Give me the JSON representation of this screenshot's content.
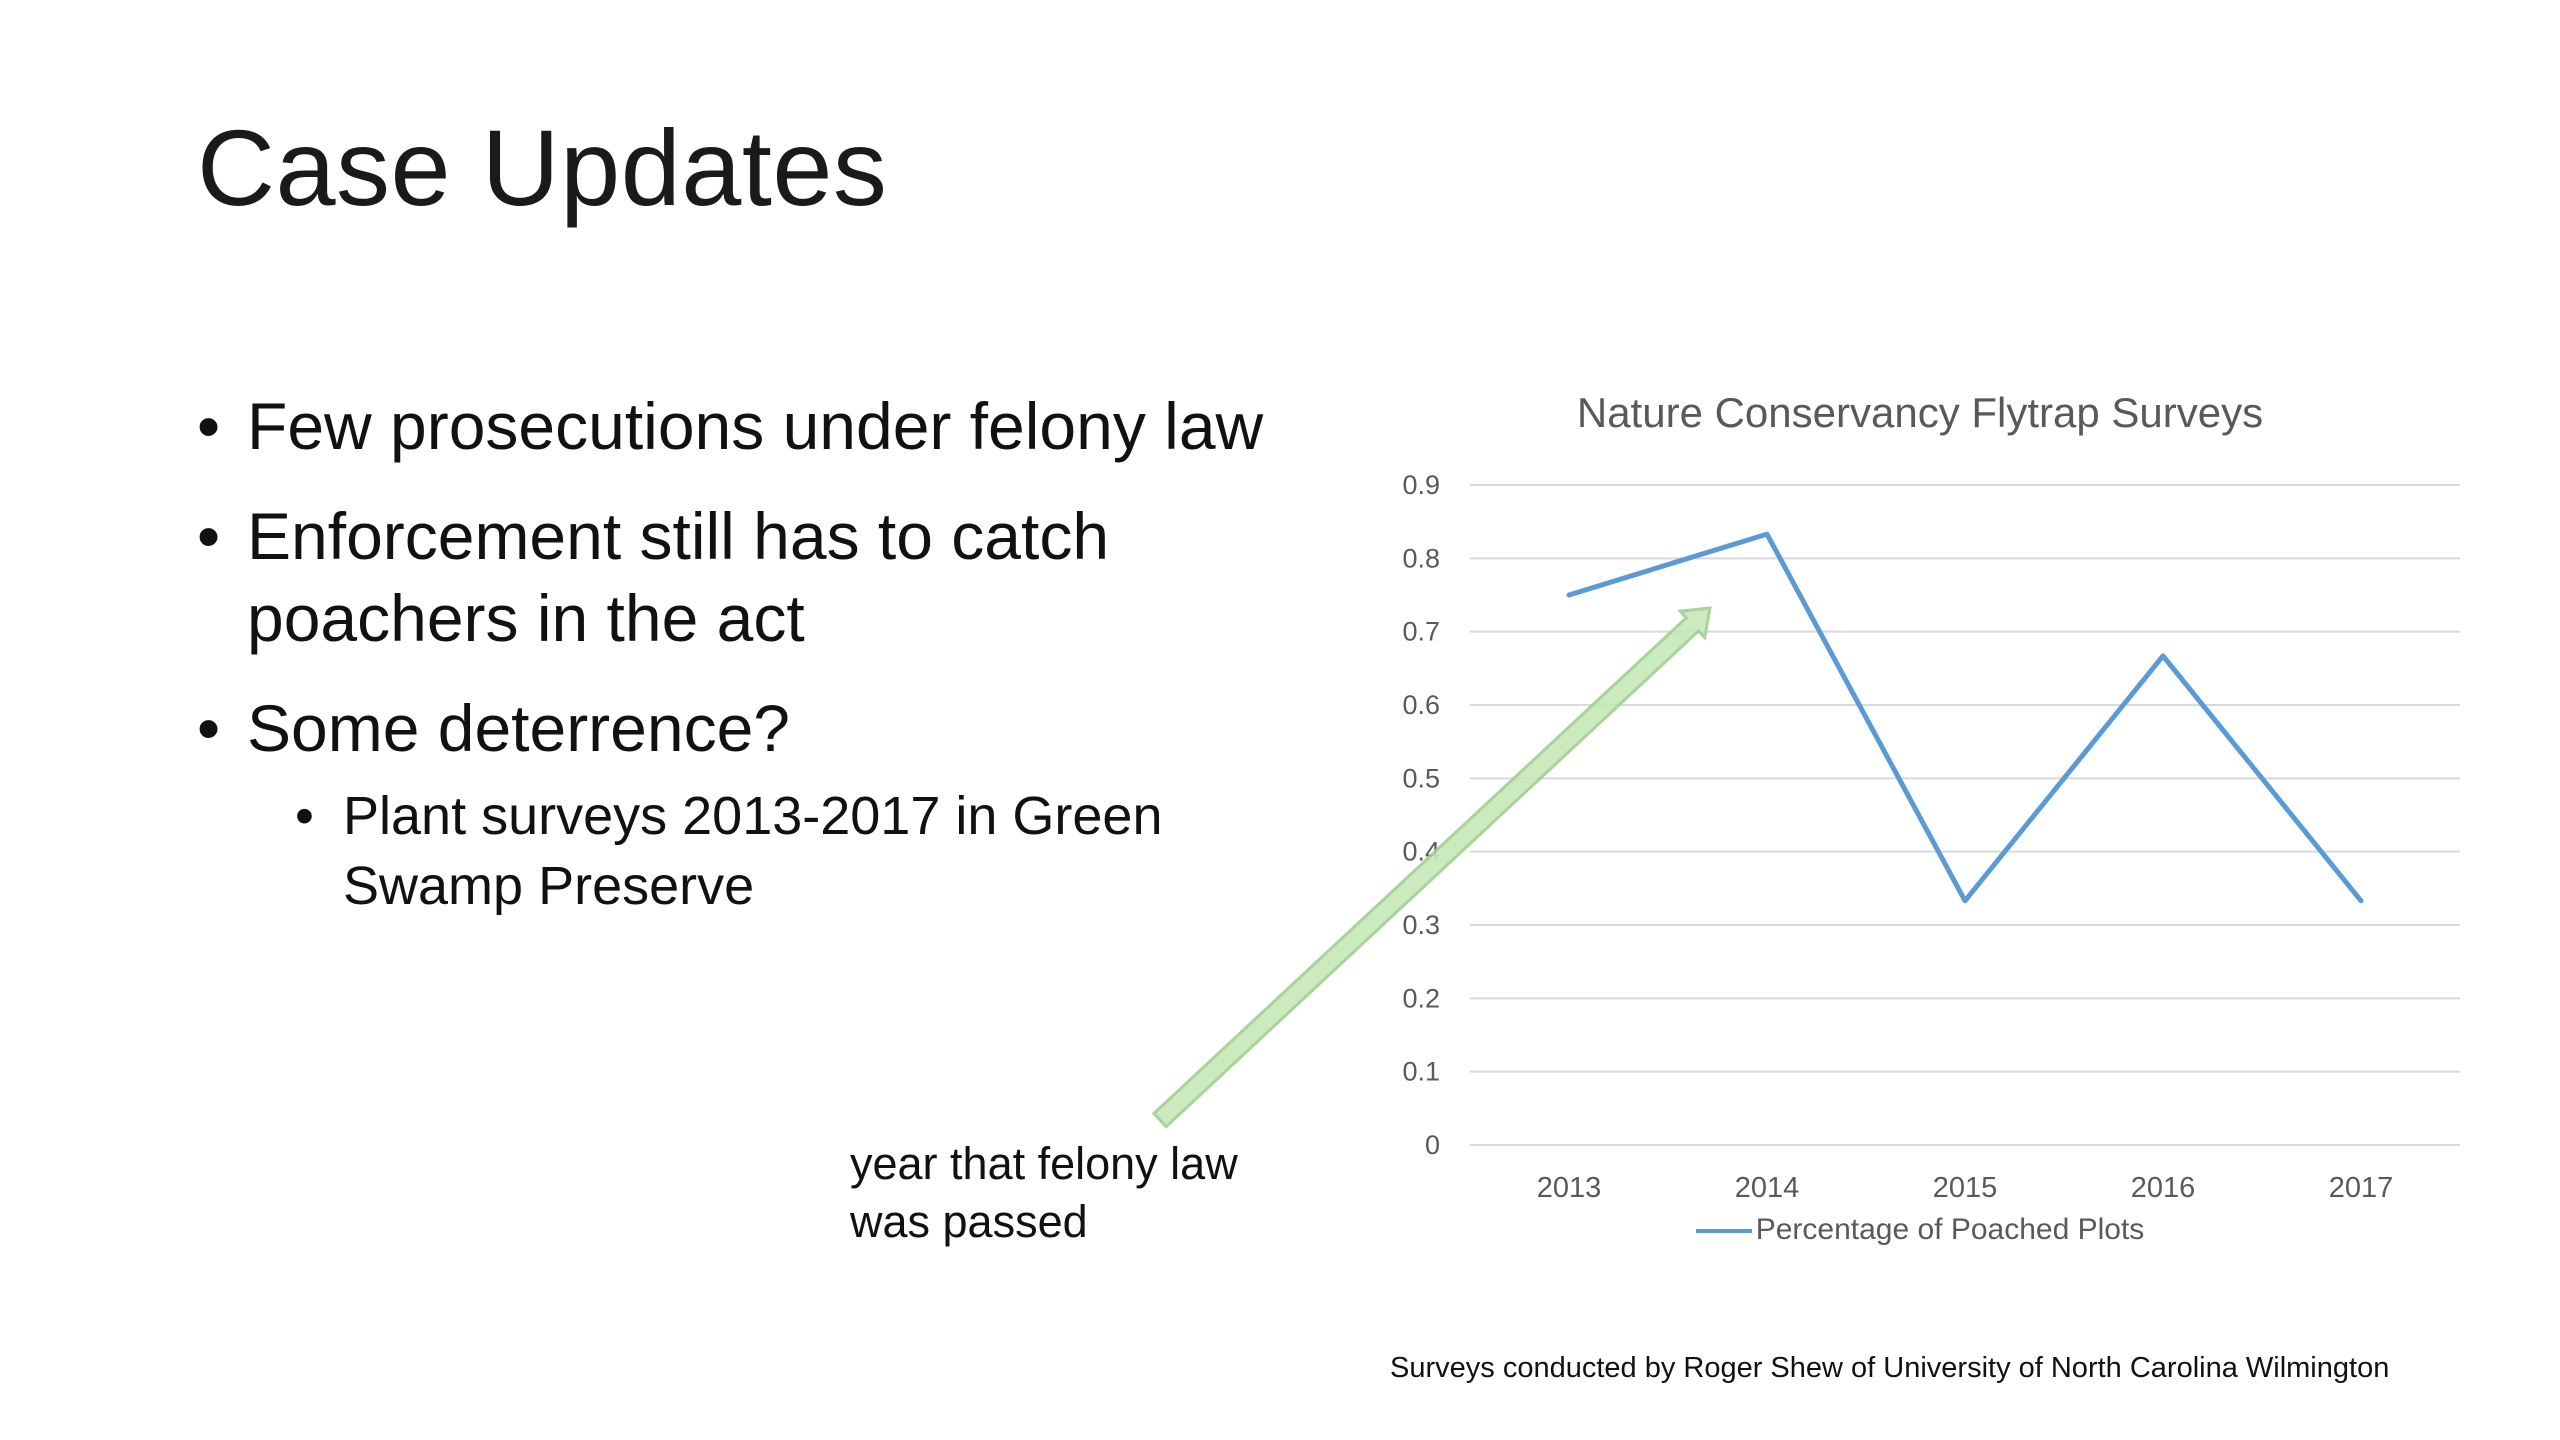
{
  "slide": {
    "title": "Case Updates",
    "bullets": [
      "Few prosecutions under felony law",
      "Enforcement still has to catch poachers in the act",
      "Some deterrence?"
    ],
    "sub_bullets": [
      "Plant surveys 2013-2017 in Green Swamp Preserve"
    ],
    "annotation": "year that felony law was passed",
    "footnote": "Surveys conducted by Roger Shew of University of North Carolina Wilmington",
    "arrow_color": "#c6e8b8",
    "arrow_border": "#9fcf8e"
  },
  "chart_data": {
    "type": "line",
    "title": "Nature Conservancy Flytrap Surveys",
    "categories": [
      "2013",
      "2014",
      "2015",
      "2016",
      "2017"
    ],
    "series": [
      {
        "name": "Percentage of Poached Plots",
        "values": [
          0.75,
          0.833,
          0.333,
          0.667,
          0.333
        ],
        "color": "#5b9bd5"
      }
    ],
    "ylim": [
      0,
      0.9
    ],
    "yticks": [
      "0",
      "0.1",
      "0.2",
      "0.3",
      "0.4",
      "0.5",
      "0.6",
      "0.7",
      "0.8",
      "0.9"
    ],
    "grid": true,
    "legend": "bottom"
  }
}
